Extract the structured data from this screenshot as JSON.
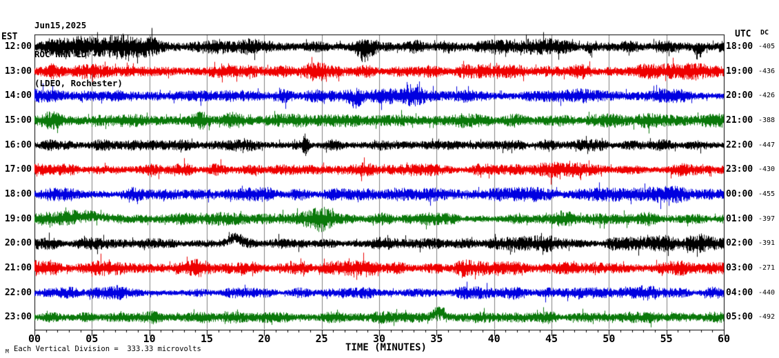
{
  "header": {
    "date": "Jun15,2025",
    "station": "ROC HHN LD --",
    "location": "(LDEO, Rochester)"
  },
  "left_axis": {
    "label": "EST"
  },
  "right_axis": {
    "label": "UTC"
  },
  "dc_column": {
    "label": "DC"
  },
  "x_axis": {
    "label": "TIME (MINUTES)",
    "ticks": [
      "00",
      "05",
      "10",
      "15",
      "20",
      "25",
      "30",
      "35",
      "40",
      "45",
      "50",
      "55",
      "60"
    ],
    "major_step_minutes": 5,
    "minor_step_minutes": 1
  },
  "footer": {
    "mark": "M",
    "scale_text": "Each Vertical Division =  333.33 microvolts"
  },
  "chart_data": {
    "type": "line",
    "subtype": "helicorder-seismogram",
    "title": "ROC HHN LD -- (LDEO, Rochester) Jun15,2025",
    "xlabel": "TIME (MINUTES)",
    "x_range_minutes": [
      0,
      60
    ],
    "rows_per_screen": 12,
    "vertical_division_microvolts": 333.33,
    "grid": true,
    "grid_color": "#808080",
    "frame_color": "#000000",
    "colors": {
      "black": "#000000",
      "red": "#ee0000",
      "blue": "#0000e0",
      "green": "#0a780a"
    },
    "rows": [
      {
        "est": "12:00",
        "utc": "18:00",
        "dc": "-405",
        "color": "black",
        "amplitude": 8.5,
        "seed": 101,
        "events": [
          {
            "m": 5.5,
            "g": 0.7,
            "w": 2.5
          },
          {
            "m": 8,
            "g": 0.4,
            "w": 1
          },
          {
            "m": 28.8,
            "g": 0.6,
            "w": 0.5,
            "bias": 1
          },
          {
            "m": 48.3,
            "g": 0.9,
            "w": 0.15,
            "bias": 1
          },
          {
            "m": 57.8,
            "g": 1.4,
            "w": 0.2,
            "bias": 1
          }
        ]
      },
      {
        "est": "13:00",
        "utc": "19:00",
        "dc": "-436",
        "color": "red",
        "amplitude": 7.5,
        "seed": 202,
        "events": [
          {
            "m": 5,
            "g": 0.5,
            "w": 1.2
          },
          {
            "m": 24.5,
            "g": 0.35,
            "w": 2
          },
          {
            "m": 57,
            "g": 0.3,
            "w": 1.5
          }
        ]
      },
      {
        "est": "14:00",
        "utc": "20:00",
        "dc": "-426",
        "color": "blue",
        "amplitude": 7,
        "seed": 303,
        "events": [
          {
            "m": 24,
            "g": 0.3,
            "w": 1
          },
          {
            "m": 27.9,
            "g": 1.1,
            "w": 0.5,
            "shift": 3
          },
          {
            "m": 32.5,
            "g": 0.55,
            "w": 2.2
          }
        ]
      },
      {
        "est": "15:00",
        "utc": "21:00",
        "dc": "-388",
        "color": "green",
        "amplitude": 7.5,
        "seed": 404,
        "events": [
          {
            "m": 2,
            "g": 0.3,
            "w": 1.5
          },
          {
            "m": 16,
            "g": 0.35,
            "w": 1.2
          }
        ]
      },
      {
        "est": "16:00",
        "utc": "22:00",
        "dc": "-447",
        "color": "black",
        "amplitude": 6,
        "seed": 505,
        "events": [
          {
            "m": 10,
            "g": 0.25,
            "w": 2
          },
          {
            "m": 23.6,
            "g": 2.2,
            "w": 0.18
          }
        ]
      },
      {
        "est": "17:00",
        "utc": "23:00",
        "dc": "-430",
        "color": "red",
        "amplitude": 6.5,
        "seed": 606,
        "events": [
          {
            "m": 27,
            "g": 0.35,
            "w": 1.5
          },
          {
            "m": 46,
            "g": 0.35,
            "w": 1.5
          }
        ]
      },
      {
        "est": "18:00",
        "utc": "00:00",
        "dc": "-455",
        "color": "blue",
        "amplitude": 7,
        "seed": 707,
        "events": [
          {
            "m": 31.5,
            "g": 0.6,
            "w": 1.4
          },
          {
            "m": 44,
            "g": 0.3,
            "w": 1
          },
          {
            "m": 54.5,
            "g": 0.5,
            "w": 1.6
          }
        ]
      },
      {
        "est": "19:00",
        "utc": "01:00",
        "dc": "-397",
        "color": "green",
        "amplitude": 7,
        "seed": 808,
        "events": [
          {
            "m": 4.8,
            "g": 0.5,
            "w": 1.3,
            "shift": -4
          },
          {
            "m": 25,
            "g": 1.5,
            "w": 0.9
          },
          {
            "m": 47,
            "g": 0.3,
            "w": 1.5
          }
        ]
      },
      {
        "est": "20:00",
        "utc": "02:00",
        "dc": "-391",
        "color": "black",
        "amplitude": 6,
        "seed": 909,
        "events": [
          {
            "m": 17.4,
            "g": 0.9,
            "w": 0.5,
            "shift": -8
          },
          {
            "m": 21.2,
            "g": 0.6,
            "w": 0.7
          },
          {
            "m": 25.3,
            "g": 0.7,
            "w": 0.6
          },
          {
            "m": 30,
            "g": 0.4,
            "w": 1.2
          },
          {
            "m": 44.5,
            "g": 0.35,
            "w": 2.5
          },
          {
            "m": 54.8,
            "g": 0.5,
            "w": 2
          },
          {
            "m": 58.5,
            "g": 0.4,
            "w": 1
          }
        ]
      },
      {
        "est": "21:00",
        "utc": "03:00",
        "dc": "-271",
        "color": "red",
        "amplitude": 7.5,
        "seed": 111,
        "events": [
          {
            "m": 14,
            "g": 0.4,
            "w": 1
          },
          {
            "m": 29.5,
            "g": 0.5,
            "w": 1
          },
          {
            "m": 38,
            "g": 0.3,
            "w": 1.5
          },
          {
            "m": 57,
            "g": 0.4,
            "w": 1.2
          }
        ]
      },
      {
        "est": "22:00",
        "utc": "04:00",
        "dc": "-440",
        "color": "blue",
        "amplitude": 6,
        "seed": 222,
        "events": [
          {
            "m": 6,
            "g": 0.3,
            "w": 1.5
          },
          {
            "m": 40,
            "g": 0.35,
            "w": 2
          },
          {
            "m": 53,
            "g": 0.3,
            "w": 1.5
          }
        ]
      },
      {
        "est": "23:00",
        "utc": "05:00",
        "dc": "-492",
        "color": "green",
        "amplitude": 6.5,
        "seed": 333,
        "events": [
          {
            "m": 12,
            "g": 0.3,
            "w": 2
          },
          {
            "m": 35.2,
            "g": 1.3,
            "w": 0.45,
            "shift": -8
          }
        ]
      }
    ]
  }
}
